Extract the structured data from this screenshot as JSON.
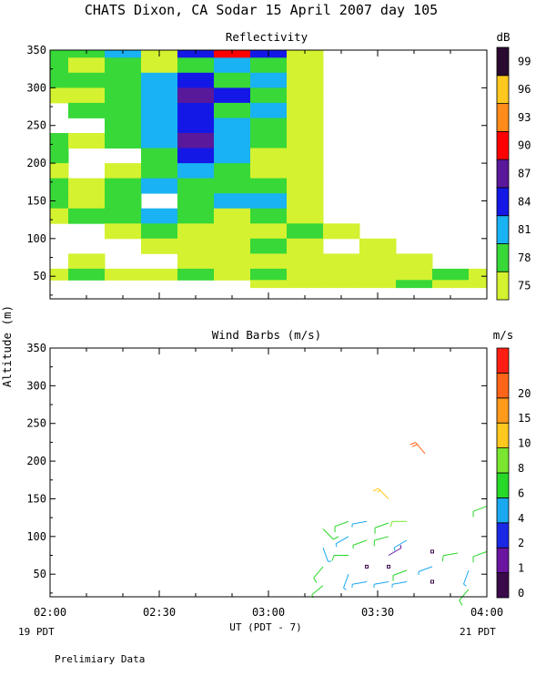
{
  "title": "CHATS Dixon, CA  Sodar  15 April 2007  day 105",
  "footer_note": "Prelimiary Data",
  "ylabel": "Altitude (m)",
  "xlabel": "UT  (PDT - 7)",
  "x_left_sublabel": "19 PDT",
  "x_right_sublabel": "21 PDT",
  "colors": {
    "dB": [
      "#d4f230",
      "#38d838",
      "#19b2f2",
      "#1418e6",
      "#5a189a",
      "#ff0000",
      "#ff8c1a",
      "#ffc81e",
      "#2a0a30"
    ],
    "ms": [
      "#3a0a4a",
      "#6a14a0",
      "#1a28e6",
      "#1aa8f0",
      "#28d828",
      "#7ae630",
      "#ffc81e",
      "#ff9a1a",
      "#ff6418",
      "#ff1e14"
    ]
  },
  "chart_data": [
    {
      "type": "heatmap",
      "title": "Reflectivity",
      "x_ticks": [
        "02:00",
        "02:30",
        "03:00",
        "03:30",
        "04:00"
      ],
      "y_ticks": [
        "50",
        "100",
        "150",
        "200",
        "250",
        "300",
        "350"
      ],
      "xlim": [
        "02:00",
        "04:00"
      ],
      "ylim": [
        20,
        350
      ],
      "colorbar": {
        "unit": "dB",
        "levels": [
          "75",
          "78",
          "81",
          "84",
          "87",
          "90",
          "93",
          "96",
          "99"
        ]
      },
      "x_times": [
        "02:00",
        "02:10",
        "02:20",
        "02:30",
        "02:40",
        "02:50",
        "03:00",
        "03:10",
        "03:20",
        "03:30",
        "03:40",
        "03:50",
        "04:00"
      ],
      "altitudes_m": [
        350,
        330,
        310,
        290,
        270,
        250,
        230,
        210,
        190,
        170,
        150,
        130,
        110,
        90,
        70,
        50,
        40
      ],
      "levels_index_grid": [
        [
          1,
          1,
          2,
          0,
          3,
          5,
          3,
          0,
          -1,
          -1,
          -1,
          -1,
          -1
        ],
        [
          1,
          0,
          1,
          0,
          1,
          2,
          1,
          0,
          -1,
          -1,
          -1,
          -1,
          -1
        ],
        [
          1,
          1,
          1,
          2,
          3,
          1,
          2,
          0,
          -1,
          -1,
          -1,
          -1,
          -1
        ],
        [
          0,
          0,
          1,
          2,
          4,
          3,
          1,
          0,
          -1,
          -1,
          -1,
          -1,
          -1
        ],
        [
          -1,
          1,
          1,
          2,
          3,
          1,
          2,
          0,
          -1,
          -1,
          -1,
          -1,
          -1
        ],
        [
          -1,
          -1,
          1,
          2,
          3,
          2,
          1,
          0,
          -1,
          -1,
          -1,
          -1,
          -1
        ],
        [
          1,
          0,
          1,
          2,
          4,
          2,
          1,
          0,
          -1,
          -1,
          -1,
          -1,
          -1
        ],
        [
          1,
          -1,
          -1,
          1,
          3,
          2,
          0,
          0,
          -1,
          -1,
          -1,
          -1,
          -1
        ],
        [
          0,
          -1,
          0,
          1,
          2,
          1,
          0,
          0,
          -1,
          -1,
          -1,
          -1,
          -1
        ],
        [
          1,
          0,
          1,
          2,
          1,
          1,
          1,
          0,
          -1,
          -1,
          -1,
          -1,
          -1
        ],
        [
          1,
          0,
          1,
          -1,
          1,
          2,
          2,
          0,
          -1,
          -1,
          -1,
          -1,
          -1
        ],
        [
          0,
          1,
          1,
          2,
          1,
          0,
          1,
          0,
          -1,
          -1,
          -1,
          -1,
          -1
        ],
        [
          -1,
          -1,
          0,
          1,
          0,
          0,
          0,
          1,
          0,
          -1,
          -1,
          -1,
          -1
        ],
        [
          -1,
          -1,
          -1,
          0,
          0,
          0,
          1,
          0,
          -1,
          0,
          -1,
          -1,
          -1
        ],
        [
          -1,
          0,
          -1,
          -1,
          0,
          0,
          0,
          0,
          0,
          0,
          0,
          -1,
          -1
        ],
        [
          0,
          1,
          0,
          0,
          1,
          0,
          1,
          0,
          0,
          0,
          0,
          1,
          0
        ],
        [
          -1,
          -1,
          -1,
          -1,
          -1,
          -1,
          0,
          0,
          0,
          0,
          1,
          0,
          0
        ]
      ]
    },
    {
      "type": "scatter",
      "title": "Wind Barbs (m/s)",
      "x_ticks": [
        "02:00",
        "02:30",
        "03:00",
        "03:30",
        "04:00"
      ],
      "y_ticks": [
        "50",
        "100",
        "150",
        "200",
        "250",
        "300",
        "350"
      ],
      "xlim": [
        "02:00",
        "04:00"
      ],
      "ylim": [
        20,
        350
      ],
      "colorbar": {
        "unit": "m/s",
        "levels": [
          "0",
          "1",
          "2",
          "4",
          "6",
          "8",
          "10",
          "15",
          "20"
        ]
      },
      "barbs": [
        {
          "time": "03:15",
          "alt_m": 110,
          "dir": 135,
          "speed": 5,
          "level": 4
        },
        {
          "time": "03:15",
          "alt_m": 85,
          "dir": 160,
          "speed": 4,
          "level": 3
        },
        {
          "time": "03:15",
          "alt_m": 60,
          "dir": 220,
          "speed": 5,
          "level": 4
        },
        {
          "time": "03:15",
          "alt_m": 35,
          "dir": 230,
          "speed": 4,
          "level": 4
        },
        {
          "time": "03:22",
          "alt_m": 120,
          "dir": 250,
          "speed": 5,
          "level": 4
        },
        {
          "time": "03:22",
          "alt_m": 100,
          "dir": 240,
          "speed": 4,
          "level": 3
        },
        {
          "time": "03:22",
          "alt_m": 75,
          "dir": 270,
          "speed": 5,
          "level": 4
        },
        {
          "time": "03:22",
          "alt_m": 50,
          "dir": 200,
          "speed": 4,
          "level": 3
        },
        {
          "time": "03:27",
          "alt_m": 120,
          "dir": 260,
          "speed": 4,
          "level": 3
        },
        {
          "time": "03:27",
          "alt_m": 95,
          "dir": 250,
          "speed": 4,
          "level": 4
        },
        {
          "time": "03:27",
          "alt_m": 60,
          "dir": 0,
          "speed": 0,
          "level": 0
        },
        {
          "time": "03:27",
          "alt_m": 40,
          "dir": 260,
          "speed": 4,
          "level": 3
        },
        {
          "time": "03:33",
          "alt_m": 150,
          "dir": 315,
          "speed": 8,
          "level": 6
        },
        {
          "time": "03:33",
          "alt_m": 118,
          "dir": 250,
          "speed": 5,
          "level": 4
        },
        {
          "time": "03:33",
          "alt_m": 100,
          "dir": 255,
          "speed": 5,
          "level": 4
        },
        {
          "time": "03:33",
          "alt_m": 75,
          "dir": 60,
          "speed": 2,
          "level": 1
        },
        {
          "time": "03:33",
          "alt_m": 60,
          "dir": 0,
          "speed": 0,
          "level": 0
        },
        {
          "time": "03:33",
          "alt_m": 40,
          "dir": 260,
          "speed": 4,
          "level": 3
        },
        {
          "time": "03:38",
          "alt_m": 120,
          "dir": 270,
          "speed": 5,
          "level": 5
        },
        {
          "time": "03:38",
          "alt_m": 95,
          "dir": 240,
          "speed": 4,
          "level": 3
        },
        {
          "time": "03:38",
          "alt_m": 55,
          "dir": 250,
          "speed": 5,
          "level": 4
        },
        {
          "time": "03:38",
          "alt_m": 40,
          "dir": 260,
          "speed": 4,
          "level": 3
        },
        {
          "time": "03:43",
          "alt_m": 210,
          "dir": 320,
          "speed": 10,
          "level": 8
        },
        {
          "time": "03:45",
          "alt_m": 80,
          "dir": 0,
          "speed": 0,
          "level": 0
        },
        {
          "time": "03:45",
          "alt_m": 40,
          "dir": 0,
          "speed": 0,
          "level": 0
        },
        {
          "time": "03:45",
          "alt_m": 60,
          "dir": 250,
          "speed": 4,
          "level": 3
        },
        {
          "time": "03:52",
          "alt_m": 78,
          "dir": 260,
          "speed": 5,
          "level": 4
        },
        {
          "time": "03:55",
          "alt_m": 55,
          "dir": 200,
          "speed": 4,
          "level": 3
        },
        {
          "time": "03:55",
          "alt_m": 30,
          "dir": 220,
          "speed": 5,
          "level": 4
        },
        {
          "time": "04:00",
          "alt_m": 140,
          "dir": 250,
          "speed": 5,
          "level": 4
        },
        {
          "time": "04:00",
          "alt_m": 80,
          "dir": 250,
          "speed": 5,
          "level": 4
        }
      ]
    }
  ]
}
